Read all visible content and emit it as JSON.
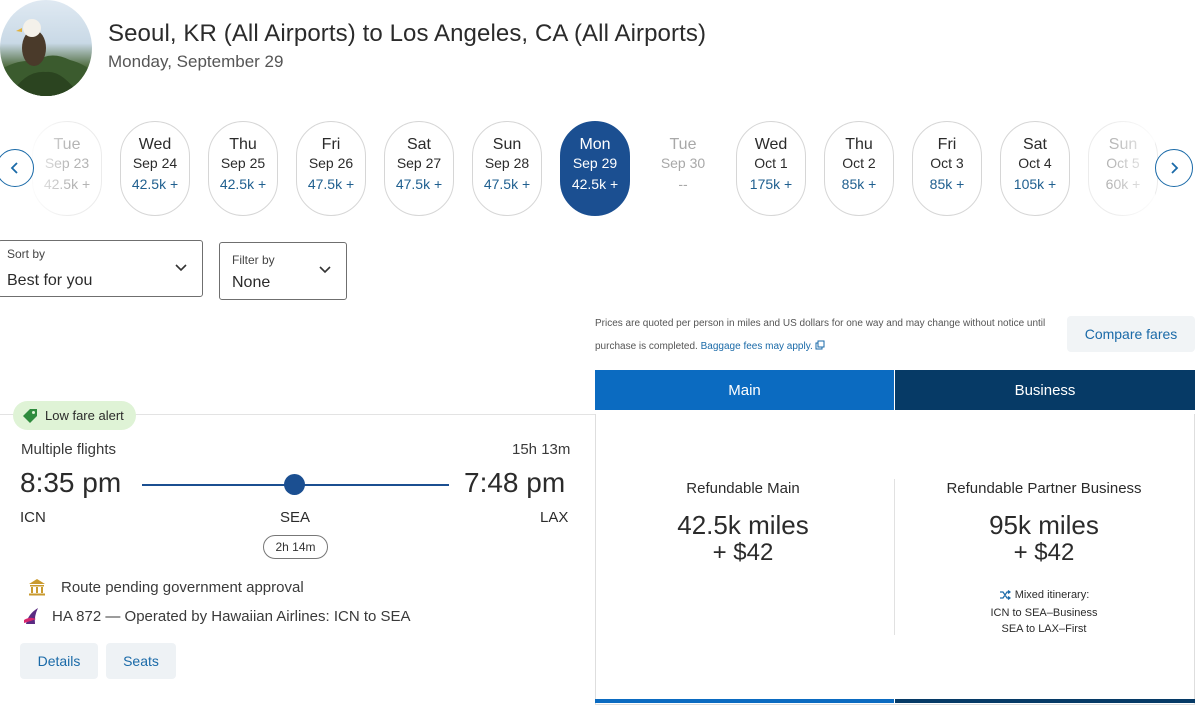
{
  "header": {
    "title": "Seoul, KR (All Airports) to Los Angeles, CA (All Airports)",
    "date": "Monday, September 29"
  },
  "dates": [
    {
      "dow": "Tue",
      "md": "Sep 23",
      "price": "42.5k +",
      "state": "faded"
    },
    {
      "dow": "Wed",
      "md": "Sep 24",
      "price": "42.5k +",
      "state": "normal"
    },
    {
      "dow": "Thu",
      "md": "Sep 25",
      "price": "42.5k +",
      "state": "normal"
    },
    {
      "dow": "Fri",
      "md": "Sep 26",
      "price": "47.5k +",
      "state": "normal"
    },
    {
      "dow": "Sat",
      "md": "Sep 27",
      "price": "47.5k +",
      "state": "normal"
    },
    {
      "dow": "Sun",
      "md": "Sep 28",
      "price": "47.5k +",
      "state": "normal"
    },
    {
      "dow": "Mon",
      "md": "Sep 29",
      "price": "42.5k +",
      "state": "selected"
    },
    {
      "dow": "Tue",
      "md": "Sep 30",
      "price": "--",
      "state": "nofill"
    },
    {
      "dow": "Wed",
      "md": "Oct 1",
      "price": "175k +",
      "state": "normal"
    },
    {
      "dow": "Thu",
      "md": "Oct 2",
      "price": "85k +",
      "state": "normal"
    },
    {
      "dow": "Fri",
      "md": "Oct 3",
      "price": "85k +",
      "state": "normal"
    },
    {
      "dow": "Sat",
      "md": "Oct 4",
      "price": "105k +",
      "state": "normal"
    },
    {
      "dow": "Sun",
      "md": "Oct 5",
      "price": "60k +",
      "state": "faded"
    }
  ],
  "sort": {
    "label": "Sort by",
    "value": "Best for you"
  },
  "filter": {
    "label": "Filter by",
    "value": "None"
  },
  "disclaimer": {
    "text": "Prices are quoted per person in miles and US dollars for one way and may change without notice until purchase is completed.",
    "link": "Baggage fees may apply."
  },
  "compare_label": "Compare fares",
  "tabs": {
    "main": "Main",
    "business": "Business"
  },
  "flight": {
    "badge": "Low fare alert",
    "type": "Multiple flights",
    "duration": "15h 13m",
    "depart_time": "8:35 pm",
    "arrive_time": "7:48 pm",
    "origin": "ICN",
    "stop": "SEA",
    "destination": "LAX",
    "layover": "2h 14m",
    "note_pending": "Route pending government approval",
    "note_operated": "HA 872 — Operated by Hawaiian Airlines: ICN to SEA",
    "details_label": "Details",
    "seats_label": "Seats"
  },
  "fares": {
    "main": {
      "name": "Refundable Main",
      "miles": "42.5k miles",
      "cash": "+ $42"
    },
    "business": {
      "name": "Refundable Partner Business",
      "miles": "95k miles",
      "cash": "+ $42",
      "mixed_title": "Mixed itinerary:",
      "mixed_line1": "ICN to SEA–Business",
      "mixed_line2": "SEA to LAX–First"
    }
  },
  "colors": {
    "accent": "#1b4f91",
    "main_tab": "#0b6bc1",
    "business_tab": "#063a66",
    "alert_bg": "#dff3d6"
  }
}
